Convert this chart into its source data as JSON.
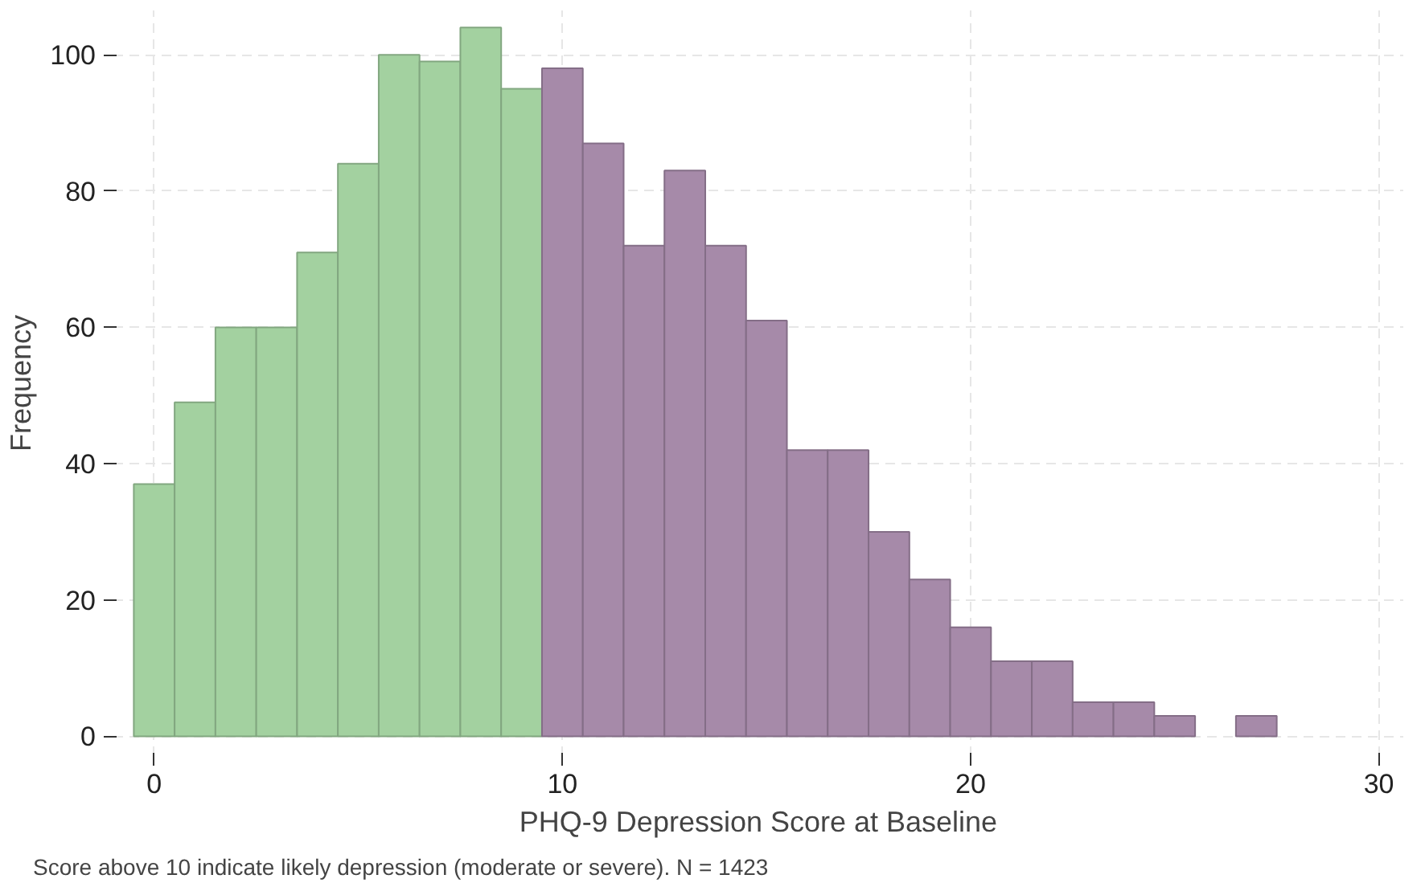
{
  "chart_data": {
    "type": "histogram",
    "xlabel": "PHQ-9 Depression Score at Baseline",
    "ylabel": "Frequency",
    "bins": [
      -0.5,
      0.5,
      1.5,
      2.5,
      3.5,
      4.5,
      5.5,
      6.5,
      7.5,
      8.5,
      9.5,
      10.5,
      11.5,
      12.5,
      13.5,
      14.5,
      15.5,
      16.5,
      17.5,
      18.5,
      19.5,
      20.5,
      21.5,
      22.5,
      23.5,
      24.5,
      25.5,
      26.5,
      27.5
    ],
    "values": [
      37,
      49,
      60,
      60,
      71,
      84,
      100,
      99,
      104,
      95,
      98,
      87,
      72,
      83,
      72,
      61,
      42,
      42,
      30,
      23,
      16,
      11,
      11,
      5,
      5,
      3,
      0,
      3
    ],
    "colors": [
      "#a3d1a0",
      "#a3d1a0",
      "#a3d1a0",
      "#a3d1a0",
      "#a3d1a0",
      "#a3d1a0",
      "#a3d1a0",
      "#a3d1a0",
      "#a3d1a0",
      "#a3d1a0",
      "#a68aa9",
      "#a68aa9",
      "#a68aa9",
      "#a68aa9",
      "#a68aa9",
      "#a68aa9",
      "#a68aa9",
      "#a68aa9",
      "#a68aa9",
      "#a68aa9",
      "#a68aa9",
      "#a68aa9",
      "#a68aa9",
      "#a68aa9",
      "#a68aa9",
      "#a68aa9",
      "#a68aa9",
      "#a68aa9"
    ],
    "xlim": [
      -1,
      30.6
    ],
    "ylim": [
      -2.9,
      106.5
    ],
    "xticks": [
      0,
      10,
      20,
      30
    ],
    "yticks": [
      0,
      20,
      40,
      60,
      80,
      100
    ],
    "grid": true,
    "annotations": [
      "Score above 10 indicate likely depression (moderate or severe). N = 1423"
    ]
  }
}
